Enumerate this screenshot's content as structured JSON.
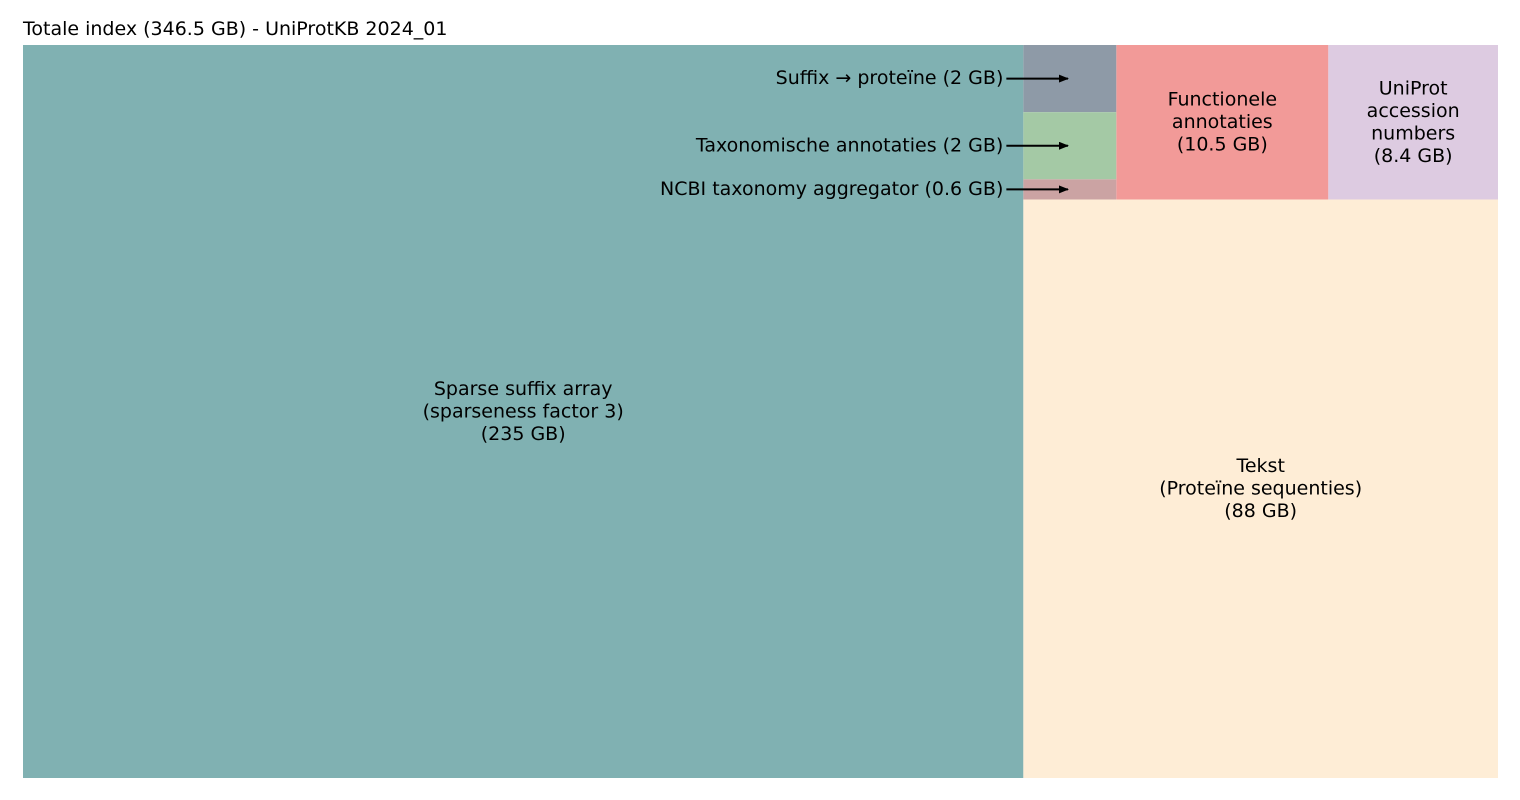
{
  "chart_data": {
    "type": "treemap",
    "title": "Totale index (346.5 GB) - UniProtKB 2024_01",
    "unit": "GB",
    "total": 346.5,
    "items": [
      {
        "id": "sparse-suffix-array",
        "label_lines": [
          "Sparse suffix array",
          "(sparseness factor 3)",
          "(235 GB)"
        ],
        "value": 235,
        "color": "#80b1b2",
        "label_mode": "inside"
      },
      {
        "id": "tekst",
        "label_lines": [
          "Tekst",
          "(Proteïne sequenties)",
          "(88 GB)"
        ],
        "value": 88,
        "color": "#feedd6",
        "label_mode": "inside"
      },
      {
        "id": "functionele-annotaties",
        "label_lines": [
          "Functionele",
          "annotaties",
          "(10.5 GB)"
        ],
        "value": 10.5,
        "color": "#f29a98",
        "label_mode": "inside"
      },
      {
        "id": "uniprot-accession-numbers",
        "label_lines": [
          "UniProt",
          "accession",
          "numbers",
          "(8.4 GB)"
        ],
        "value": 8.4,
        "color": "#ddcbe1",
        "label_mode": "inside"
      },
      {
        "id": "suffix-proteine",
        "label_lines": [
          "Suffix → proteïne (2 GB)"
        ],
        "value": 2,
        "color": "#8e9aa7",
        "label_mode": "arrow"
      },
      {
        "id": "taxonomische-annotaties",
        "label_lines": [
          "Taxonomische annotaties (2 GB)"
        ],
        "value": 2,
        "color": "#a4c9a5",
        "label_mode": "arrow"
      },
      {
        "id": "ncbi-taxonomy-aggregator",
        "label_lines": [
          "NCBI taxonomy aggregator (0.6 GB)"
        ],
        "value": 0.6,
        "color": "#cba3a3",
        "label_mode": "arrow"
      }
    ],
    "legend": "none",
    "grid": false
  }
}
